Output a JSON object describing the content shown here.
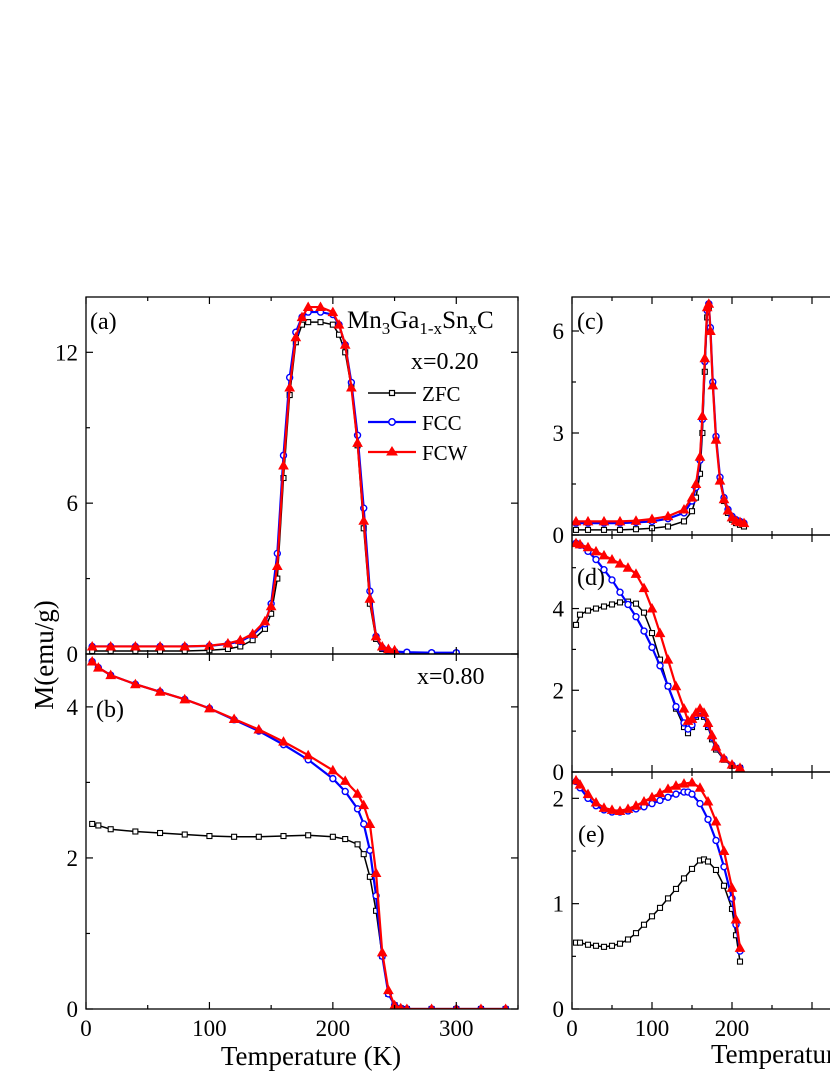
{
  "chart_data": [
    {
      "panel": "(a)",
      "type": "line",
      "compound": {
        "base": "Mn",
        "sub1": "3",
        "mid": "Ga",
        "sub2": "1-x",
        "mid2": "Sn",
        "sub3": "x",
        "end": "C"
      },
      "composition": "x=0.20",
      "legend": {
        "position": "top-right",
        "entries": [
          "ZFC",
          "FCC",
          "FCW"
        ]
      },
      "xlim": [
        0,
        350
      ],
      "ylim": [
        0,
        14.2
      ],
      "yticks": [
        0,
        6,
        12
      ],
      "ytick_labels": [
        "0",
        "6",
        "12"
      ],
      "series": [
        {
          "name": "ZFC",
          "color": "#000000",
          "marker": "square",
          "x": [
            5,
            20,
            40,
            60,
            80,
            100,
            115,
            125,
            135,
            145,
            150,
            155,
            160,
            165,
            170,
            175,
            180,
            190,
            200,
            205,
            210,
            215,
            220,
            225,
            230,
            235,
            240,
            245,
            250,
            260,
            280,
            300
          ],
          "y": [
            0.12,
            0.12,
            0.12,
            0.12,
            0.12,
            0.15,
            0.2,
            0.3,
            0.55,
            1.0,
            1.6,
            3.0,
            7.0,
            10.3,
            12.4,
            13.1,
            13.2,
            13.2,
            13.1,
            12.7,
            12.0,
            10.6,
            8.3,
            5.0,
            2.0,
            0.6,
            0.2,
            0.1,
            0.08,
            0.05,
            0.03,
            0.03
          ]
        },
        {
          "name": "FCC",
          "color": "#0000ff",
          "marker": "circle",
          "x": [
            5,
            20,
            40,
            60,
            80,
            100,
            115,
            125,
            135,
            145,
            150,
            155,
            160,
            165,
            170,
            175,
            180,
            190,
            200,
            205,
            210,
            215,
            220,
            225,
            230,
            235,
            240,
            245,
            250,
            260,
            280,
            300
          ],
          "y": [
            0.3,
            0.3,
            0.3,
            0.3,
            0.3,
            0.32,
            0.4,
            0.5,
            0.75,
            1.2,
            2.0,
            4.0,
            7.9,
            11.0,
            12.8,
            13.4,
            13.6,
            13.6,
            13.5,
            13.1,
            12.3,
            10.8,
            8.7,
            5.8,
            2.5,
            0.7,
            0.25,
            0.15,
            0.1,
            0.07,
            0.05,
            0.05
          ]
        },
        {
          "name": "FCW",
          "color": "#ff0000",
          "marker": "triangle",
          "x": [
            5,
            20,
            40,
            60,
            80,
            100,
            115,
            125,
            135,
            145,
            150,
            155,
            160,
            165,
            170,
            175,
            180,
            190,
            200,
            205,
            210,
            215,
            220,
            225,
            230,
            235,
            240,
            245,
            250
          ],
          "y": [
            0.3,
            0.3,
            0.3,
            0.3,
            0.3,
            0.33,
            0.42,
            0.55,
            0.8,
            1.3,
            1.9,
            3.5,
            7.5,
            10.6,
            12.6,
            13.4,
            13.8,
            13.8,
            13.6,
            13.1,
            12.3,
            10.6,
            8.4,
            5.3,
            2.2,
            0.7,
            0.3,
            0.2,
            0.15
          ]
        }
      ]
    },
    {
      "panel": "(b)",
      "type": "line",
      "composition": "x=0.80",
      "xlim": [
        0,
        350
      ],
      "ylim": [
        0,
        4.7
      ],
      "yticks": [
        0,
        2,
        4
      ],
      "ytick_labels": [
        "0",
        "2",
        "4"
      ],
      "xticks": [
        0,
        100,
        200,
        300
      ],
      "xtick_labels": [
        "0",
        "100",
        "200",
        "300"
      ],
      "xlabel": "Temperature (K)",
      "ylabel": "M(emu/g)",
      "series": [
        {
          "name": "ZFC",
          "color": "#000000",
          "marker": "square",
          "x": [
            5,
            10,
            20,
            40,
            60,
            80,
            100,
            120,
            140,
            160,
            180,
            200,
            210,
            220,
            225,
            230,
            235,
            240,
            245,
            250,
            255,
            260,
            280,
            300,
            320,
            340
          ],
          "y": [
            2.45,
            2.43,
            2.38,
            2.35,
            2.33,
            2.31,
            2.29,
            2.28,
            2.28,
            2.29,
            2.3,
            2.28,
            2.25,
            2.18,
            2.05,
            1.75,
            1.3,
            0.7,
            0.2,
            0.05,
            0.01,
            0.0,
            0.0,
            0.0,
            0.0,
            0.0
          ]
        },
        {
          "name": "FCC",
          "color": "#0000ff",
          "marker": "circle",
          "x": [
            5,
            10,
            20,
            40,
            60,
            80,
            100,
            120,
            140,
            160,
            180,
            200,
            210,
            220,
            225,
            230,
            235,
            240,
            245,
            250,
            255,
            260,
            280,
            300,
            320,
            340
          ],
          "y": [
            4.6,
            4.52,
            4.42,
            4.3,
            4.2,
            4.1,
            3.98,
            3.83,
            3.68,
            3.5,
            3.3,
            3.05,
            2.88,
            2.65,
            2.45,
            2.1,
            1.5,
            0.7,
            0.2,
            0.05,
            0.01,
            0.0,
            0.0,
            0.0,
            0.0,
            0.0
          ]
        },
        {
          "name": "FCW",
          "color": "#ff0000",
          "marker": "triangle",
          "x": [
            5,
            10,
            20,
            40,
            60,
            80,
            100,
            120,
            140,
            160,
            180,
            200,
            210,
            220,
            225,
            230,
            235,
            240,
            245,
            250,
            255,
            260,
            280,
            300,
            320,
            340
          ],
          "y": [
            4.6,
            4.52,
            4.42,
            4.3,
            4.2,
            4.1,
            3.98,
            3.84,
            3.7,
            3.54,
            3.36,
            3.16,
            3.02,
            2.85,
            2.7,
            2.45,
            1.8,
            0.75,
            0.25,
            0.05,
            0.01,
            0.0,
            0.0,
            0.0,
            0.0,
            0.0
          ]
        }
      ]
    },
    {
      "panel": "(c)",
      "type": "line",
      "xlim": [
        0,
        350
      ],
      "ylim": [
        0,
        7
      ],
      "yticks": [
        0,
        3,
        6
      ],
      "ytick_labels": [
        "0",
        "3",
        "6"
      ],
      "series": [
        {
          "name": "ZFC",
          "color": "#000000",
          "marker": "square",
          "x": [
            5,
            20,
            40,
            60,
            80,
            100,
            120,
            140,
            150,
            155,
            160,
            163,
            166,
            169,
            171,
            173,
            176,
            180,
            185,
            190,
            195,
            200,
            205,
            210,
            215
          ],
          "y": [
            0.15,
            0.15,
            0.15,
            0.15,
            0.17,
            0.2,
            0.25,
            0.4,
            0.7,
            1.1,
            1.8,
            3.0,
            4.8,
            6.4,
            6.7,
            6.0,
            4.4,
            2.8,
            1.6,
            1.0,
            0.65,
            0.45,
            0.35,
            0.3,
            0.25
          ]
        },
        {
          "name": "FCC",
          "color": "#0000ff",
          "marker": "circle",
          "x": [
            5,
            20,
            40,
            60,
            80,
            100,
            120,
            140,
            150,
            155,
            160,
            163,
            166,
            169,
            171,
            173,
            176,
            180,
            185,
            190,
            195,
            200,
            205,
            210,
            215
          ],
          "y": [
            0.35,
            0.35,
            0.35,
            0.35,
            0.37,
            0.4,
            0.48,
            0.65,
            1.0,
            1.4,
            2.2,
            3.4,
            5.1,
            6.6,
            6.8,
            6.1,
            4.5,
            2.9,
            1.7,
            1.1,
            0.75,
            0.55,
            0.45,
            0.4,
            0.35
          ]
        },
        {
          "name": "FCW",
          "color": "#ff0000",
          "marker": "triangle",
          "x": [
            5,
            20,
            40,
            60,
            80,
            100,
            120,
            140,
            150,
            155,
            160,
            163,
            166,
            169,
            171,
            173,
            176,
            180,
            185,
            190,
            195,
            200,
            205,
            210,
            215
          ],
          "y": [
            0.4,
            0.4,
            0.4,
            0.4,
            0.42,
            0.47,
            0.55,
            0.75,
            1.1,
            1.5,
            2.3,
            3.5,
            5.2,
            6.7,
            6.8,
            6.0,
            4.4,
            2.8,
            1.6,
            1.05,
            0.72,
            0.52,
            0.42,
            0.38,
            0.35
          ]
        }
      ]
    },
    {
      "panel": "(d)",
      "type": "line",
      "xlim": [
        0,
        350
      ],
      "ylim": [
        0,
        5.8
      ],
      "yticks": [
        0,
        2,
        4
      ],
      "ytick_labels": [
        "0",
        "2",
        "4"
      ],
      "series": [
        {
          "name": "ZFC",
          "color": "#000000",
          "marker": "square",
          "x": [
            5,
            10,
            20,
            30,
            40,
            50,
            60,
            70,
            80,
            90,
            100,
            110,
            120,
            130,
            140,
            145,
            150,
            155,
            160,
            165,
            170,
            175,
            180,
            190,
            200,
            210
          ],
          "y": [
            3.6,
            3.85,
            3.95,
            4.0,
            4.05,
            4.1,
            4.15,
            4.17,
            4.12,
            3.9,
            3.4,
            2.75,
            2.1,
            1.55,
            1.1,
            0.95,
            1.1,
            1.35,
            1.45,
            1.35,
            1.1,
            0.8,
            0.55,
            0.3,
            0.15,
            0.1
          ]
        },
        {
          "name": "FCC",
          "color": "#0000ff",
          "marker": "circle",
          "x": [
            5,
            10,
            20,
            30,
            40,
            50,
            60,
            70,
            80,
            90,
            100,
            110,
            120,
            130,
            140,
            145,
            150,
            155,
            160,
            165,
            170,
            175,
            180,
            190,
            200,
            210
          ],
          "y": [
            5.6,
            5.55,
            5.4,
            5.2,
            4.95,
            4.7,
            4.4,
            4.1,
            3.8,
            3.45,
            3.05,
            2.6,
            2.1,
            1.6,
            1.2,
            1.05,
            1.15,
            1.4,
            1.5,
            1.4,
            1.15,
            0.85,
            0.6,
            0.32,
            0.17,
            0.1
          ]
        },
        {
          "name": "FCW",
          "color": "#ff0000",
          "marker": "triangle",
          "x": [
            5,
            10,
            20,
            30,
            40,
            50,
            60,
            70,
            80,
            90,
            100,
            110,
            120,
            130,
            140,
            145,
            150,
            155,
            160,
            165,
            170,
            175,
            180,
            190,
            200,
            210
          ],
          "y": [
            5.6,
            5.57,
            5.5,
            5.4,
            5.3,
            5.2,
            5.1,
            5.0,
            4.85,
            4.5,
            4.0,
            3.4,
            2.75,
            2.1,
            1.55,
            1.25,
            1.3,
            1.45,
            1.55,
            1.45,
            1.2,
            0.9,
            0.62,
            0.33,
            0.18,
            0.1
          ]
        }
      ]
    },
    {
      "panel": "(e)",
      "type": "line",
      "xlim": [
        0,
        350
      ],
      "ylim": [
        0,
        2.25
      ],
      "yticks": [
        0,
        1,
        2
      ],
      "ytick_labels": [
        "0",
        "1",
        "2"
      ],
      "xticks": [
        0,
        100,
        200
      ],
      "xtick_labels": [
        "0",
        "100",
        "200"
      ],
      "xlabel": "Temperature (K)",
      "series": [
        {
          "name": "ZFC",
          "color": "#000000",
          "marker": "square",
          "x": [
            5,
            10,
            20,
            30,
            40,
            50,
            60,
            70,
            80,
            90,
            100,
            110,
            120,
            130,
            140,
            150,
            160,
            165,
            170,
            180,
            190,
            200,
            205,
            210
          ],
          "y": [
            0.63,
            0.63,
            0.61,
            0.6,
            0.59,
            0.6,
            0.62,
            0.66,
            0.72,
            0.8,
            0.88,
            0.96,
            1.05,
            1.14,
            1.24,
            1.33,
            1.41,
            1.42,
            1.4,
            1.32,
            1.17,
            0.95,
            0.7,
            0.45
          ]
        },
        {
          "name": "FCC",
          "color": "#0000ff",
          "marker": "circle",
          "x": [
            5,
            10,
            20,
            30,
            40,
            50,
            60,
            70,
            80,
            90,
            100,
            110,
            120,
            130,
            140,
            145,
            150,
            160,
            170,
            180,
            190,
            200,
            205,
            210
          ],
          "y": [
            2.16,
            2.1,
            2.0,
            1.93,
            1.89,
            1.87,
            1.87,
            1.88,
            1.9,
            1.92,
            1.95,
            1.98,
            2.01,
            2.04,
            2.06,
            2.06,
            2.04,
            1.95,
            1.8,
            1.6,
            1.35,
            1.05,
            0.8,
            0.55
          ]
        },
        {
          "name": "FCW",
          "color": "#ff0000",
          "marker": "triangle",
          "x": [
            5,
            10,
            20,
            30,
            40,
            50,
            60,
            70,
            80,
            90,
            100,
            110,
            120,
            130,
            140,
            150,
            160,
            170,
            180,
            190,
            200,
            205,
            210
          ],
          "y": [
            2.17,
            2.13,
            2.04,
            1.96,
            1.91,
            1.89,
            1.88,
            1.9,
            1.93,
            1.97,
            2.01,
            2.05,
            2.09,
            2.12,
            2.14,
            2.15,
            2.1,
            1.97,
            1.78,
            1.5,
            1.15,
            0.85,
            0.58
          ]
        }
      ]
    }
  ]
}
